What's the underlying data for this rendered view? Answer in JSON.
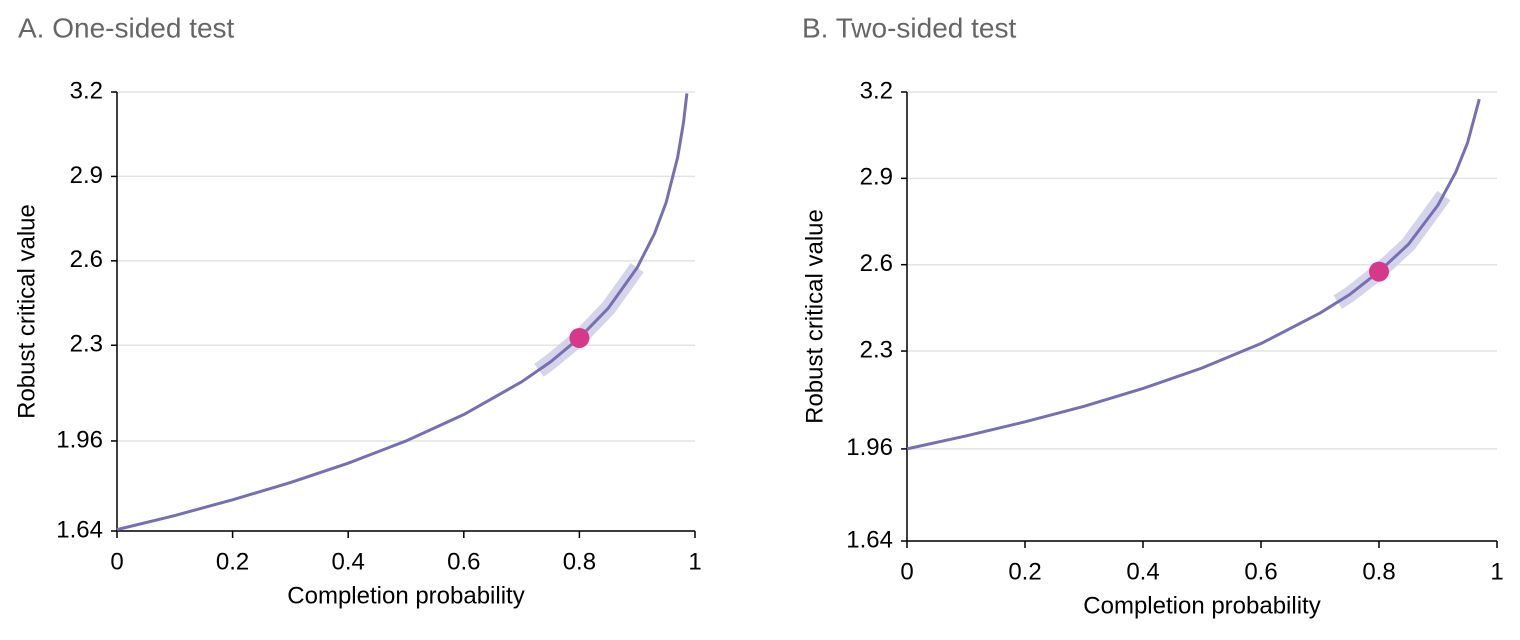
{
  "chart_data": [
    {
      "type": "line",
      "title": "A. One-sided test",
      "xlabel": "Completion probability",
      "ylabel": "Robust critical value",
      "x": [
        0,
        0.1,
        0.2,
        0.3,
        0.4,
        0.5,
        0.6,
        0.7,
        0.75,
        0.8,
        0.85,
        0.9,
        0.93,
        0.95,
        0.97,
        0.98,
        0.986
      ],
      "series": [
        {
          "color": "#7670b3",
          "values": [
            1.645,
            1.695,
            1.751,
            1.812,
            1.881,
            1.96,
            2.054,
            2.17,
            2.241,
            2.326,
            2.432,
            2.576,
            2.697,
            2.807,
            2.968,
            3.09,
            3.195
          ]
        }
      ],
      "band": {
        "color": "#cfcde6",
        "x": [
          0.73,
          0.75,
          0.8,
          0.85,
          0.9
        ],
        "values": [
          2.211,
          2.241,
          2.326,
          2.432,
          2.576
        ]
      },
      "point": {
        "color": "#d6398a",
        "x": 0.8,
        "y": 2.326
      },
      "xlim": [
        0,
        1
      ],
      "xticks": [
        0,
        0.2,
        0.4,
        0.6,
        0.8,
        1
      ],
      "ylim": [
        1.64,
        3.2
      ],
      "yticks": [
        1.64,
        1.96,
        2.3,
        2.6,
        2.9,
        3.2
      ],
      "grid": true
    },
    {
      "type": "line",
      "title": "B. Two-sided test",
      "xlabel": "Completion probability",
      "ylabel": "Robust critical value",
      "x": [
        0,
        0.1,
        0.2,
        0.3,
        0.4,
        0.5,
        0.6,
        0.7,
        0.75,
        0.8,
        0.85,
        0.9,
        0.93,
        0.95,
        0.97
      ],
      "series": [
        {
          "color": "#7670b3",
          "values": [
            1.96,
            2.005,
            2.054,
            2.108,
            2.17,
            2.241,
            2.326,
            2.432,
            2.496,
            2.576,
            2.671,
            2.807,
            2.921,
            3.023,
            3.175
          ]
        }
      ],
      "band": {
        "color": "#cfcde6",
        "x": [
          0.73,
          0.75,
          0.8,
          0.85,
          0.91
        ],
        "values": [
          2.47,
          2.496,
          2.576,
          2.671,
          2.84
        ]
      },
      "point": {
        "color": "#d6398a",
        "x": 0.8,
        "y": 2.576
      },
      "xlim": [
        0,
        1
      ],
      "xticks": [
        0,
        0.2,
        0.4,
        0.6,
        0.8,
        1
      ],
      "ylim": [
        1.64,
        3.2
      ],
      "yticks": [
        1.64,
        1.96,
        2.3,
        2.6,
        2.9,
        3.2
      ],
      "grid": true
    }
  ]
}
